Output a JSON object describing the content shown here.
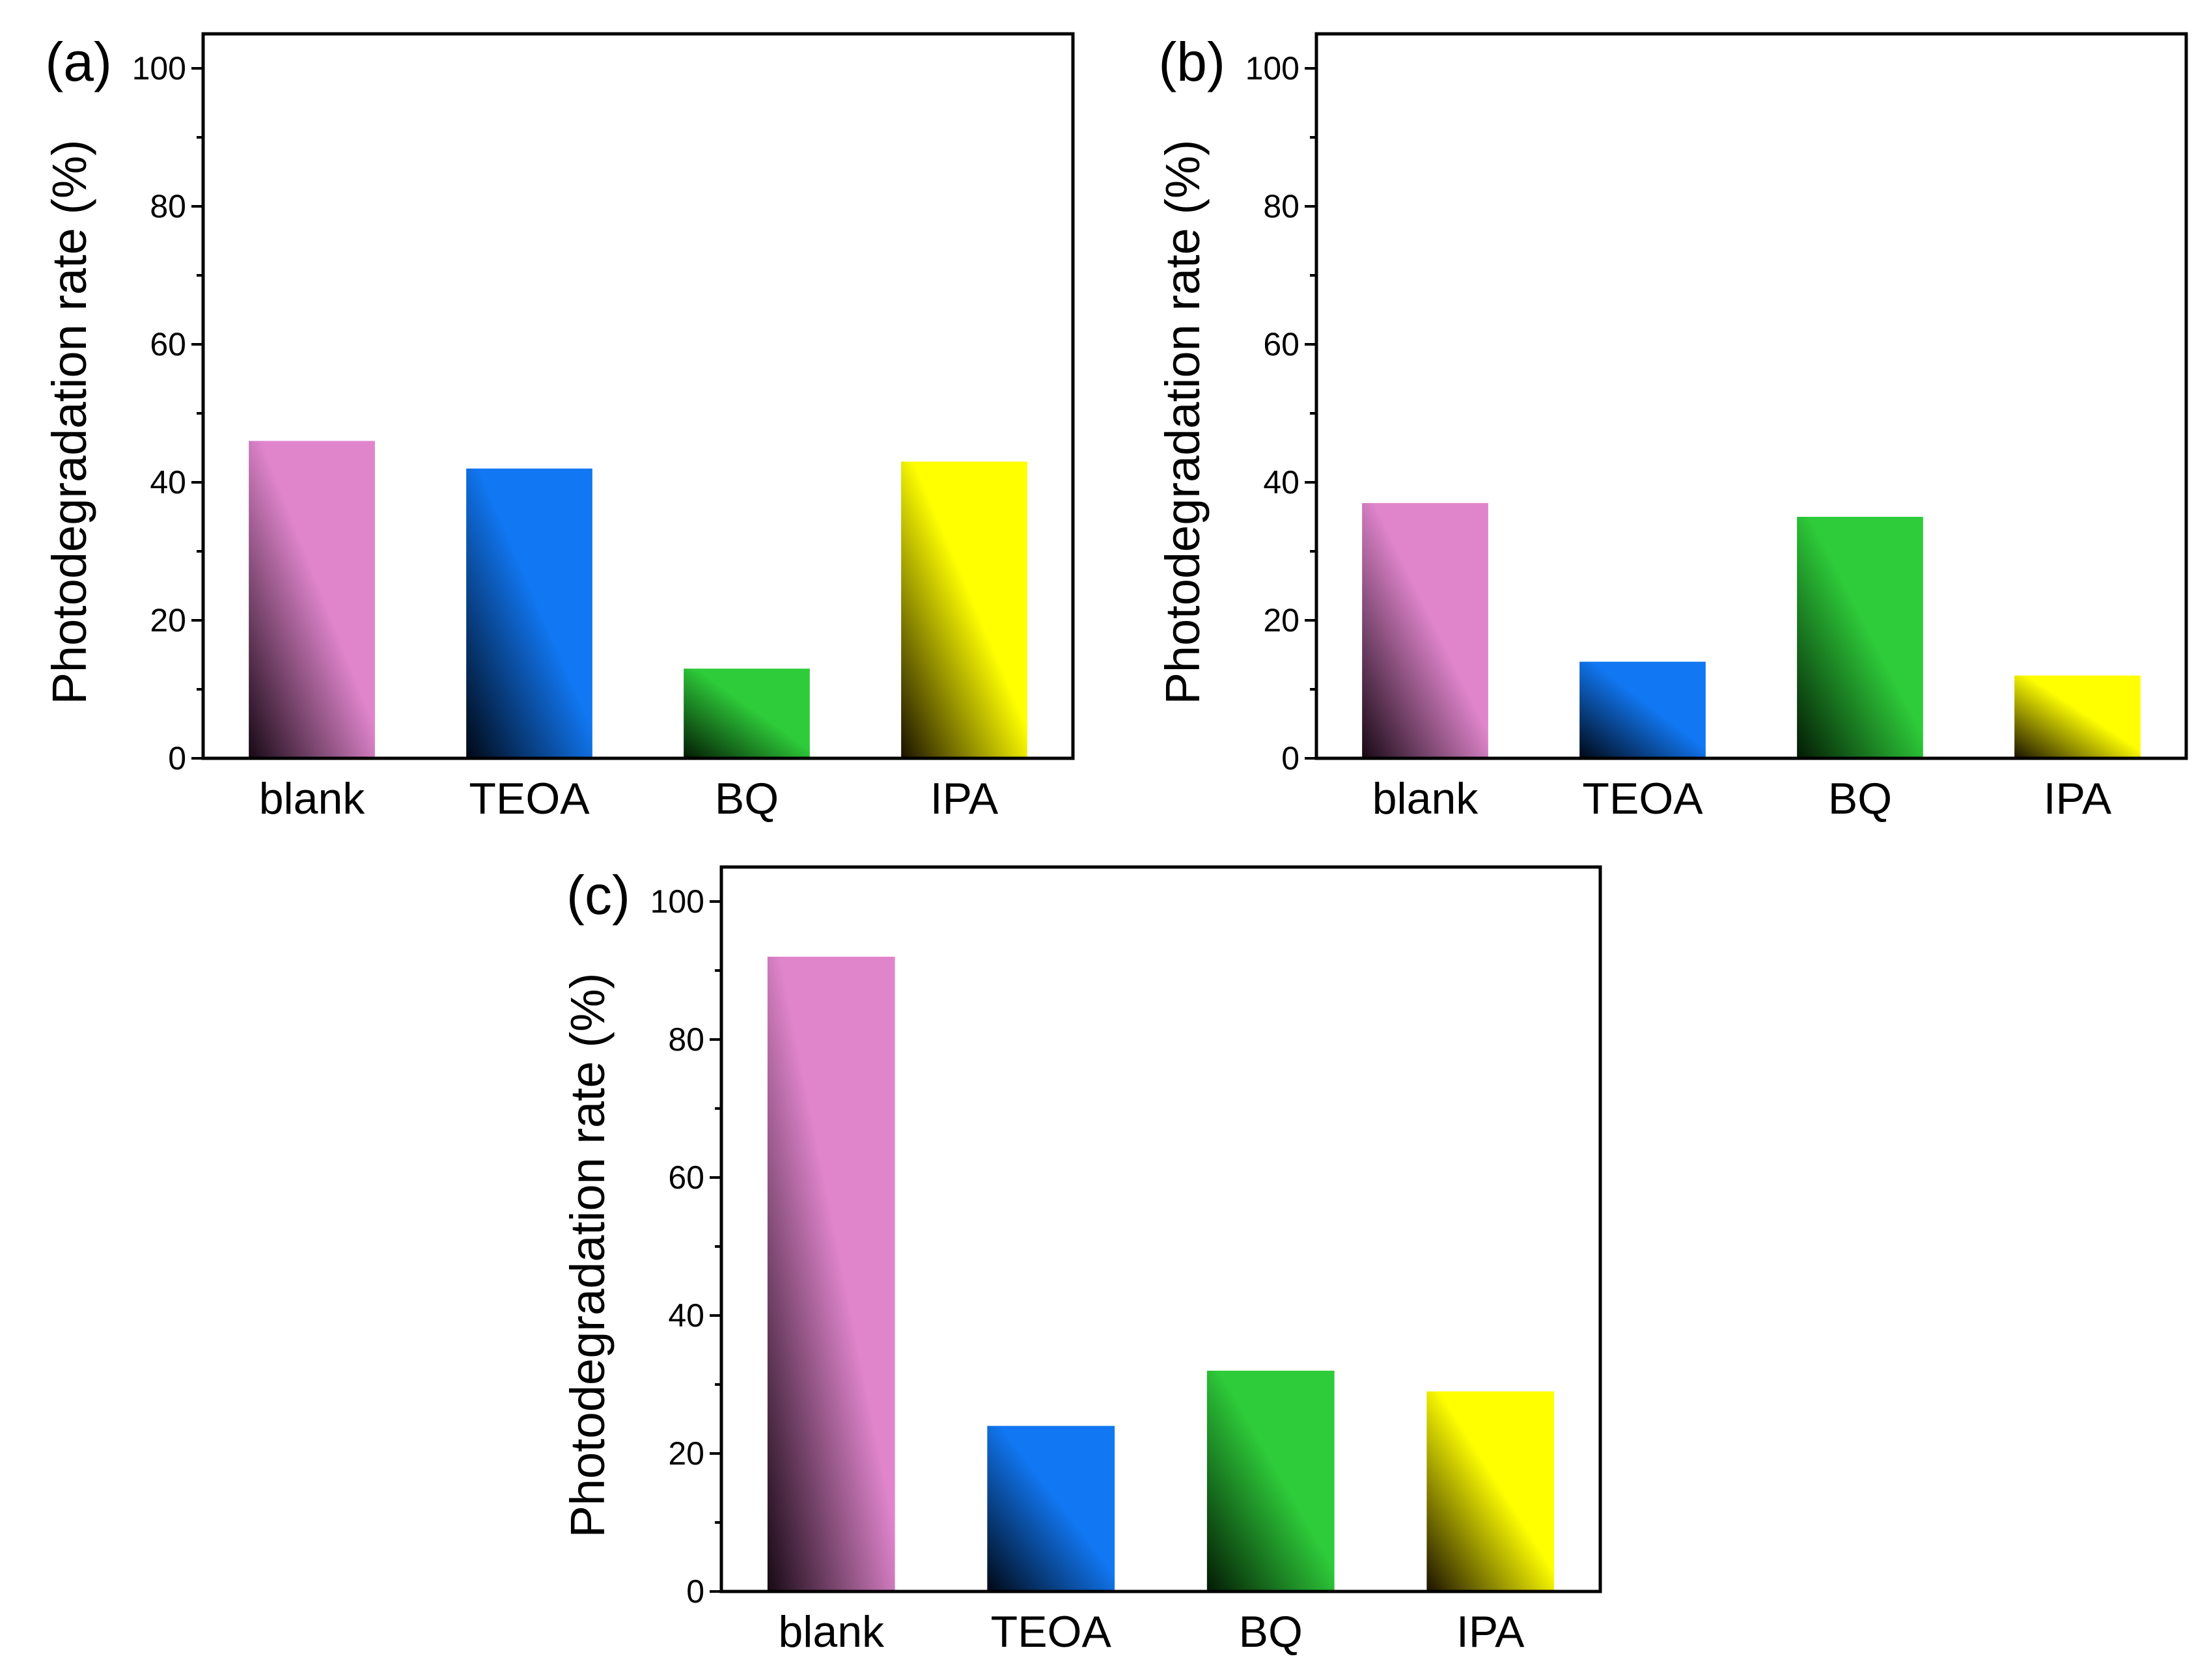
{
  "colors": {
    "blank": {
      "light": "#E085CC",
      "dark": "#170914"
    },
    "TEOA": {
      "light": "#1177F2",
      "dark": "#000814"
    },
    "BQ": {
      "light": "#2ECC3A",
      "dark": "#031A04"
    },
    "IPA": {
      "light": "#FFFF00",
      "dark": "#1A1100"
    }
  },
  "chart_data": [
    {
      "type": "bar",
      "panel_label": "(a)",
      "categories": [
        "blank",
        "TEOA",
        "BQ",
        "IPA"
      ],
      "values": [
        46,
        42,
        13,
        43
      ],
      "ylabel": "Photodegradation rate (%)",
      "xlabel": "",
      "ylim": [
        0,
        105
      ],
      "yticks": [
        0,
        20,
        40,
        60,
        80,
        100
      ]
    },
    {
      "type": "bar",
      "panel_label": "(b)",
      "categories": [
        "blank",
        "TEOA",
        "BQ",
        "IPA"
      ],
      "values": [
        37,
        14,
        35,
        12
      ],
      "ylabel": "Photodegradation rate (%)",
      "xlabel": "",
      "ylim": [
        0,
        105
      ],
      "yticks": [
        0,
        20,
        40,
        60,
        80,
        100
      ]
    },
    {
      "type": "bar",
      "panel_label": "(c)",
      "categories": [
        "blank",
        "TEOA",
        "BQ",
        "IPA"
      ],
      "values": [
        92,
        24,
        32,
        29
      ],
      "ylabel": "Photodegradation rate (%)",
      "xlabel": "",
      "ylim": [
        0,
        105
      ],
      "yticks": [
        0,
        20,
        40,
        60,
        80,
        100
      ]
    }
  ]
}
